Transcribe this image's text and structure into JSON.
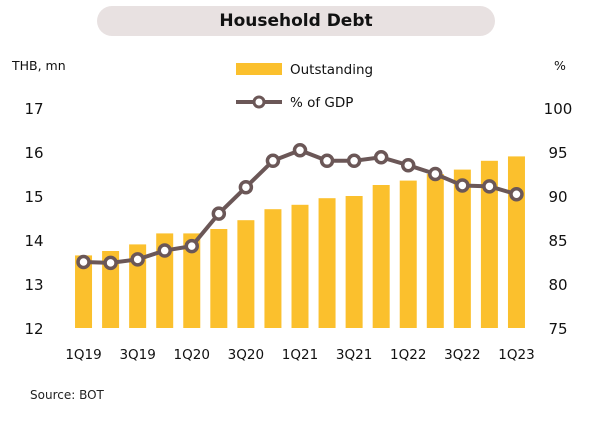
{
  "chart_data": {
    "type": "bar",
    "title": "Household Debt",
    "y_left_label": "THB, mn",
    "y_right_label": "%",
    "categories": [
      "1Q19",
      "2Q19",
      "3Q19",
      "4Q19",
      "1Q20",
      "2Q20",
      "3Q20",
      "4Q20",
      "1Q21",
      "2Q21",
      "3Q21",
      "4Q21",
      "1Q22",
      "2Q22",
      "3Q22",
      "4Q22",
      "1Q23"
    ],
    "x_tick_labels": [
      "1Q19",
      "",
      "3Q19",
      "",
      "1Q20",
      "",
      "3Q20",
      "",
      "1Q21",
      "",
      "3Q21",
      "",
      "1Q22",
      "",
      "3Q22",
      "",
      "1Q23"
    ],
    "series": [
      {
        "name": "Outstanding",
        "type": "bar",
        "axis": "left",
        "values": [
          13.65,
          13.75,
          13.9,
          14.15,
          14.15,
          14.25,
          14.45,
          14.7,
          14.8,
          14.95,
          15.0,
          15.25,
          15.35,
          15.5,
          15.6,
          15.8,
          15.9
        ]
      },
      {
        "name": "% of GDP",
        "type": "line",
        "axis": "right",
        "values": [
          82.5,
          82.4,
          82.8,
          83.8,
          84.3,
          88.0,
          91.0,
          94.0,
          95.2,
          94.0,
          94.0,
          94.4,
          93.5,
          92.5,
          91.2,
          91.1,
          90.2
        ]
      }
    ],
    "y_left_lim": [
      12,
      17
    ],
    "y_left_ticks": [
      "12",
      "13",
      "14",
      "15",
      "16",
      "17"
    ],
    "y_right_lim": [
      75,
      100
    ],
    "y_right_ticks": [
      "75",
      "80",
      "85",
      "90",
      "95",
      "100"
    ],
    "legend_position": "top-center",
    "colors": {
      "bar": "#fbc02d",
      "line": "#6b5757",
      "marker_fill": "#ffffff"
    }
  },
  "source": "Source: BOT"
}
